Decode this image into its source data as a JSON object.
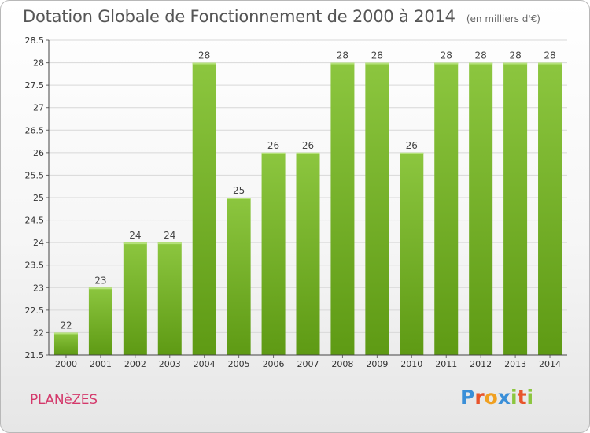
{
  "title": "Dotation Globale de Fonctionnement de 2000 à 2014",
  "subtitle": "(en milliers d'€)",
  "commune": "PLANèZES",
  "logo": {
    "letters": [
      "P",
      "r",
      "o",
      "x",
      "i",
      "t",
      "i"
    ],
    "colors": [
      "#3a8fd8",
      "#e8542b",
      "#f0a020",
      "#3a8fd8",
      "#8cc63f",
      "#e8542b",
      "#8cc63f"
    ]
  },
  "chart_data": {
    "type": "bar",
    "categories": [
      "2000",
      "2001",
      "2002",
      "2003",
      "2004",
      "2005",
      "2006",
      "2007",
      "2008",
      "2009",
      "2010",
      "2011",
      "2012",
      "2013",
      "2014"
    ],
    "values": [
      22,
      23,
      24,
      24,
      28,
      25,
      26,
      26,
      28,
      28,
      26,
      28,
      28,
      28,
      28
    ],
    "data_labels": [
      "22",
      "23",
      "24",
      "24",
      "28",
      "25",
      "26",
      "26",
      "28",
      "28",
      "26",
      "28",
      "28",
      "28",
      "28"
    ],
    "title": "Dotation Globale de Fonctionnement de 2000 à 2014",
    "ylim": [
      21.5,
      28.5
    ],
    "yticks": [
      21.5,
      22,
      22.5,
      23,
      23.5,
      24,
      24.5,
      25,
      25.5,
      26,
      26.5,
      27,
      27.5,
      28,
      28.5
    ],
    "ytick_labels": [
      "21.5",
      "22",
      "22.5",
      "23",
      "23.5",
      "24",
      "24.5",
      "25",
      "25.5",
      "26",
      "26.5",
      "27",
      "27.5",
      "28",
      "28.5"
    ],
    "grid": true,
    "bar_color": "#8cc63f",
    "bar_color_dark": "#5e9a14"
  }
}
